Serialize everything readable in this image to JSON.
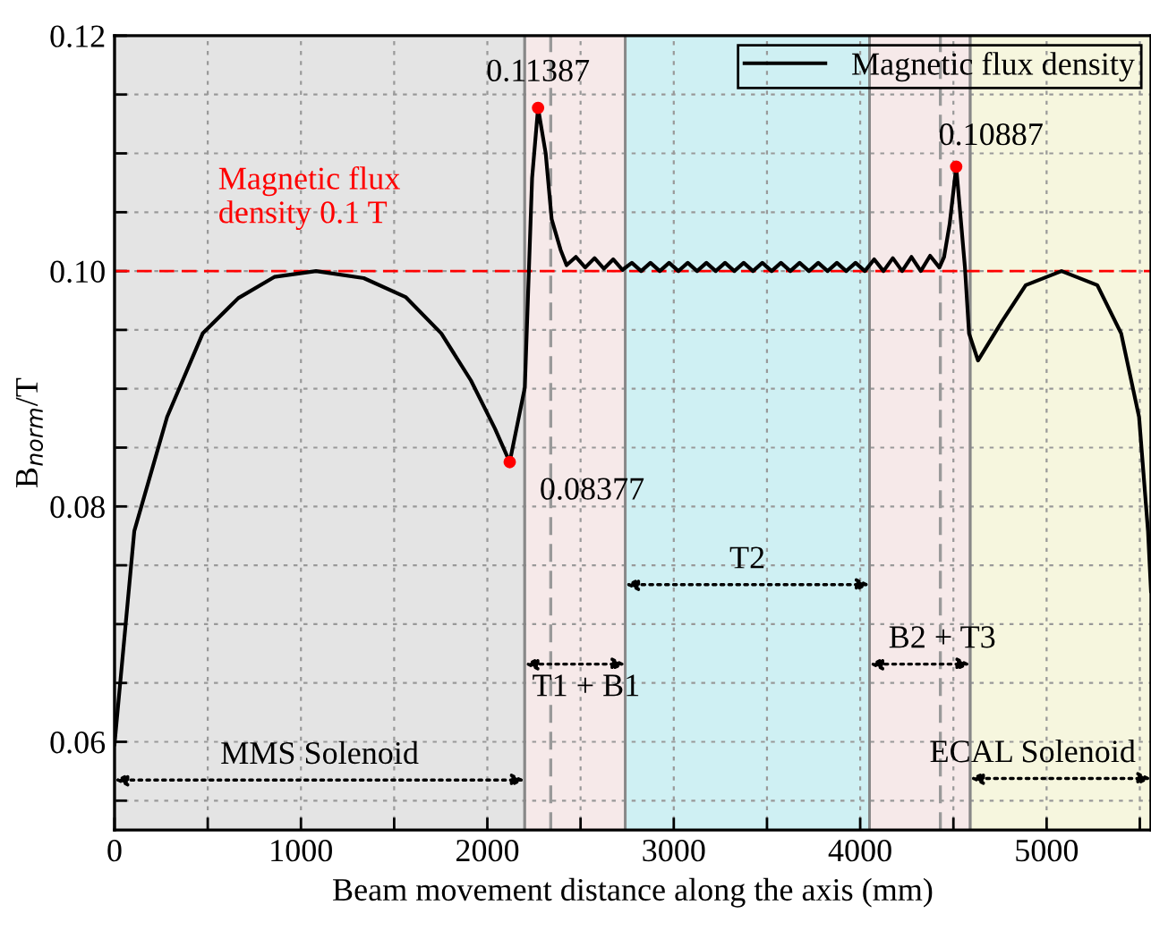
{
  "chart_data": {
    "type": "line",
    "xlabel": "Beam movement distance along the axis (mm)",
    "ylabel": "B$_{norm}$/T",
    "xlim": [
      0,
      5560
    ],
    "ylim": [
      0.0525,
      0.12
    ],
    "xticks": [
      0,
      {
        "value": 500,
        "label": null
      },
      1000,
      {
        "value": 1500,
        "label": null
      },
      2000,
      {
        "value": 2500,
        "label": null
      },
      3000,
      {
        "value": 3500,
        "label": null
      },
      4000,
      {
        "value": 4500,
        "label": null
      },
      5000,
      {
        "value": 5500,
        "label": null
      }
    ],
    "yticks": [
      {
        "value": 0.055,
        "label": null
      },
      {
        "value": 0.06,
        "label": "0.06"
      },
      {
        "value": 0.065,
        "label": null
      },
      {
        "value": 0.07,
        "label": null
      },
      {
        "value": 0.075,
        "label": null
      },
      {
        "value": 0.08,
        "label": "0.08"
      },
      {
        "value": 0.085,
        "label": null
      },
      {
        "value": 0.09,
        "label": null
      },
      {
        "value": 0.095,
        "label": null
      },
      {
        "value": 0.1,
        "label": "0.10"
      },
      {
        "value": 0.105,
        "label": null
      },
      {
        "value": 0.11,
        "label": null
      },
      {
        "value": 0.115,
        "label": null
      },
      {
        "value": 0.12,
        "label": "0.12"
      }
    ],
    "grid": true,
    "legend": "top right",
    "line_style": "solid",
    "marker": "none",
    "series": [
      {
        "name": "Magnetic flux density",
        "color": "#000000",
        "type": "line",
        "x": [
          0,
          106,
          282,
          473,
          664,
          857,
          1081,
          1337,
          1561,
          1753,
          1912,
          2041,
          2120,
          2201,
          2240,
          2272,
          2313,
          2345,
          2393,
          2425,
          2475,
          2525,
          2575,
          2625,
          2675,
          2725,
          2775,
          2825,
          2875,
          2925,
          2975,
          3025,
          3075,
          3125,
          3175,
          3225,
          3275,
          3325,
          3375,
          3425,
          3475,
          3525,
          3575,
          3625,
          3675,
          3725,
          3775,
          3825,
          3875,
          3925,
          3975,
          4025,
          4075,
          4125,
          4175,
          4225,
          4275,
          4325,
          4375,
          4425,
          4450,
          4480,
          4515,
          4562,
          4584,
          4632,
          4760,
          4888,
          5080,
          5272,
          5400,
          5496,
          5544,
          5560
        ],
        "values": [
          0.0598,
          0.0779,
          0.0876,
          0.0947,
          0.0977,
          0.0995,
          0.1,
          0.0994,
          0.0978,
          0.0947,
          0.0907,
          0.0866,
          0.08377,
          0.0901,
          0.1079,
          0.11387,
          0.11,
          0.1044,
          0.1018,
          0.1005,
          0.1012,
          0.1003,
          0.1011,
          0.1002,
          0.101,
          0.1001,
          0.1007,
          0.1,
          0.1007,
          0.1,
          0.1007,
          0.1,
          0.1007,
          0.1,
          0.1007,
          0.1,
          0.1007,
          0.1,
          0.1007,
          0.1,
          0.1007,
          0.1,
          0.1007,
          0.1,
          0.1007,
          0.1,
          0.1007,
          0.1,
          0.1007,
          0.1,
          0.1007,
          0.1,
          0.101,
          0.1,
          0.1011,
          0.1,
          0.1012,
          0.1,
          0.1013,
          0.1003,
          0.1012,
          0.104,
          0.10887,
          0.1003,
          0.0947,
          0.0924,
          0.0957,
          0.0988,
          0.1,
          0.0988,
          0.0947,
          0.0876,
          0.0779,
          0.0728
        ]
      },
      {
        "color": "#ff0000",
        "type": "scatter",
        "marker": "circle",
        "x": [
          2120,
          2272,
          4515
        ],
        "values": [
          0.08377,
          0.11387,
          0.10887
        ]
      }
    ],
    "annotations": [
      {
        "text": "0.08377",
        "x": 2120,
        "y": 0.08377
      },
      {
        "text": "0.11387",
        "x": 2272,
        "y": 0.11387
      },
      {
        "text": "0.10887",
        "x": 4515,
        "y": 0.10887
      }
    ],
    "ref_lines": [
      {
        "axis": "y",
        "value": 0.1,
        "label": "Magnetic flux\ndensity 0.1 T",
        "color": "#ff0000",
        "line_style": "dashed"
      },
      {
        "axis": "x",
        "value": 2340,
        "color": "#999999",
        "line_style": "dashed"
      },
      {
        "axis": "x",
        "value": 4430,
        "color": "#999999",
        "line_style": "dashed"
      }
    ],
    "bands": [
      {
        "axis": "x",
        "from": 0,
        "to": 2200,
        "label": "MMS Solenoid",
        "color": "#e4e4e4"
      },
      {
        "axis": "x",
        "from": 2200,
        "to": 2740,
        "label": "T1 + B1",
        "color": "#f6e9e9"
      },
      {
        "axis": "x",
        "from": 2740,
        "to": 4050,
        "label": "T2",
        "color": "#cff0f3"
      },
      {
        "axis": "x",
        "from": 4050,
        "to": 4590,
        "label": "B2 + T3",
        "color": "#f6e9e9"
      },
      {
        "axis": "x",
        "from": 4590,
        "to": 5560,
        "label": "ECAL Solenoid",
        "color": "#f6f6de"
      }
    ]
  }
}
